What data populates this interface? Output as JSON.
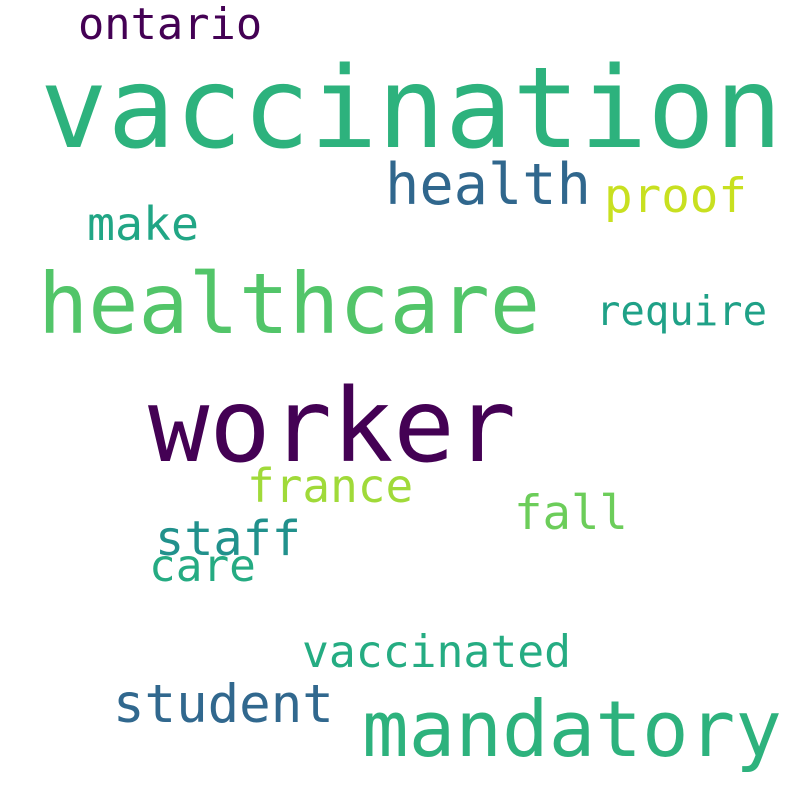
{
  "wordcloud": {
    "words": [
      {
        "id": "vaccination",
        "text": "vaccination",
        "color": "#2db27d"
      },
      {
        "id": "worker",
        "text": "worker",
        "color": "#440154"
      },
      {
        "id": "healthcare",
        "text": "healthcare",
        "color": "#52c569"
      },
      {
        "id": "mandatory",
        "text": "mandatory",
        "color": "#2db27d"
      },
      {
        "id": "health",
        "text": "health",
        "color": "#30678d"
      },
      {
        "id": "student",
        "text": "student",
        "color": "#31688e"
      },
      {
        "id": "staff",
        "text": "staff",
        "color": "#21918c"
      },
      {
        "id": "france",
        "text": "france",
        "color": "#a0da39"
      },
      {
        "id": "fall",
        "text": "fall",
        "color": "#6ccd5a"
      },
      {
        "id": "proof",
        "text": "proof",
        "color": "#c8e020"
      },
      {
        "id": "ontario",
        "text": "ontario",
        "color": "#440154"
      },
      {
        "id": "make",
        "text": "make",
        "color": "#21a685"
      },
      {
        "id": "require",
        "text": "require",
        "color": "#1fa187"
      },
      {
        "id": "care",
        "text": "care",
        "color": "#25ab82"
      },
      {
        "id": "vaccinated",
        "text": "vaccinated",
        "color": "#25ac82"
      }
    ]
  }
}
